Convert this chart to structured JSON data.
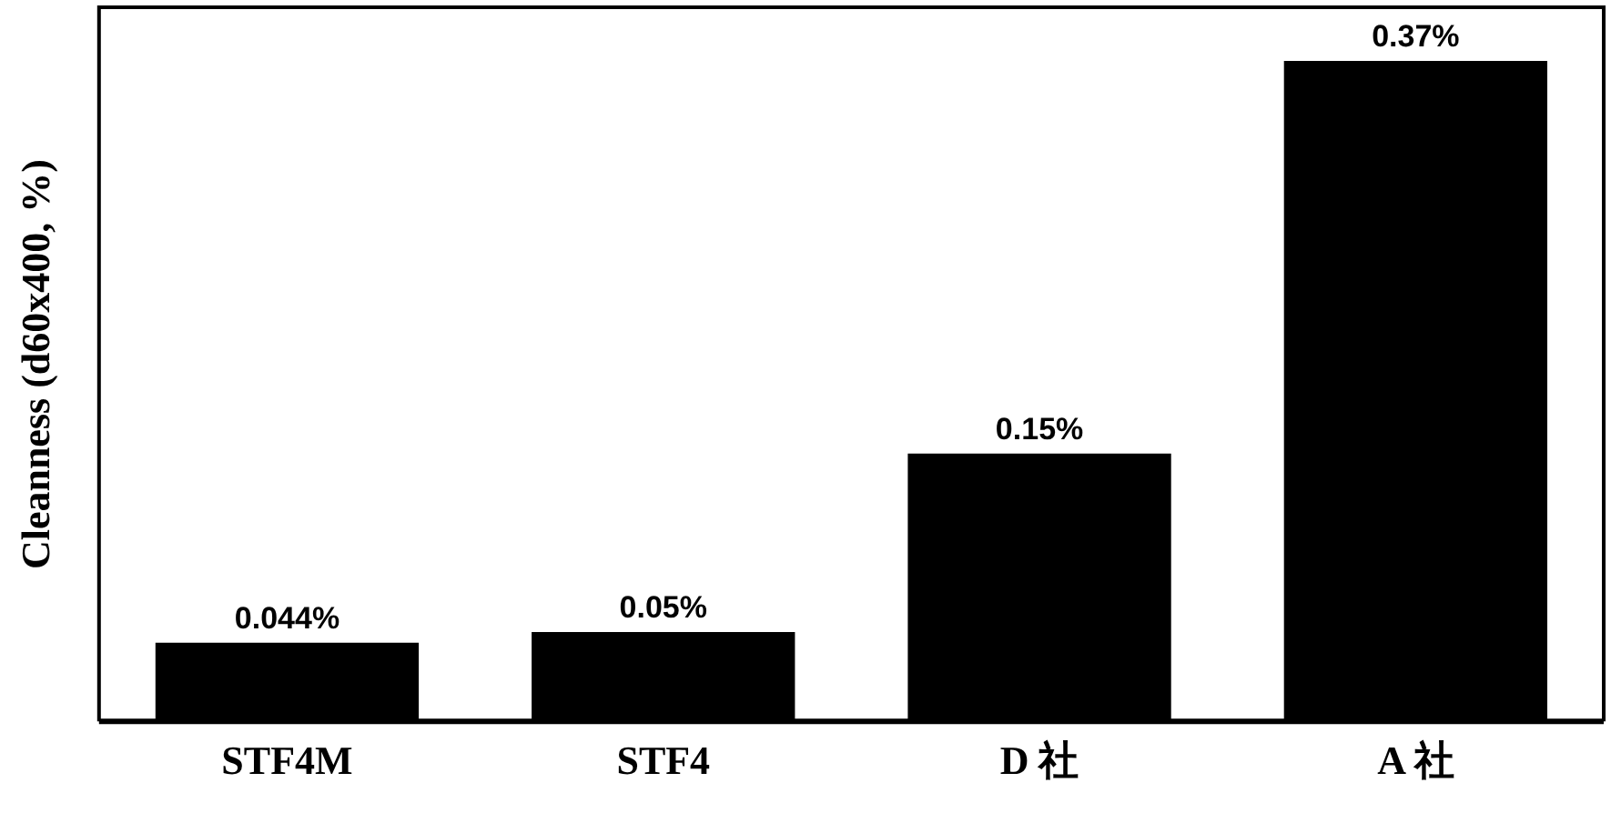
{
  "chart_data": {
    "type": "bar",
    "ylabel": "Cleanness (d60x400, %)",
    "categories": [
      "STF4M",
      "STF4",
      "D 社",
      "A 社"
    ],
    "values": [
      0.044,
      0.05,
      0.15,
      0.37
    ],
    "color": "#000000",
    "value_labels": [
      "0.044%",
      "0.05%",
      "0.15%",
      "0.37%"
    ],
    "ylim": [
      0,
      0.4
    ],
    "grid": false,
    "legend": false,
    "tick_labels": "x"
  }
}
